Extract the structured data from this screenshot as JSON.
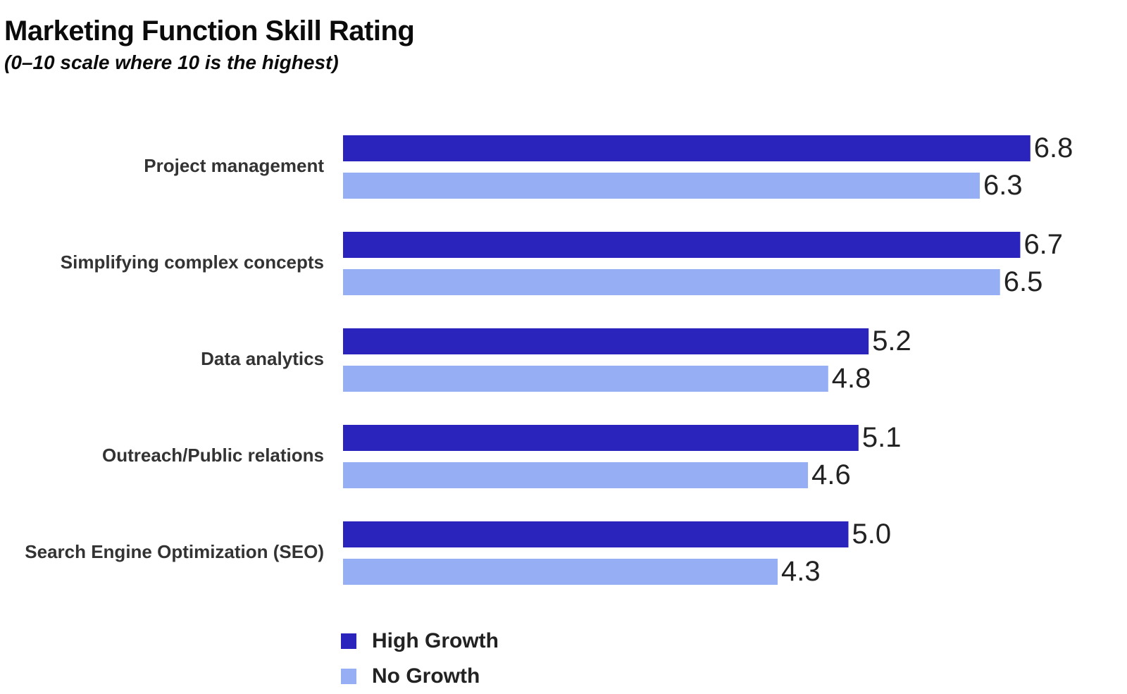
{
  "chart_data": {
    "type": "bar",
    "orientation": "horizontal",
    "title": "Marketing Function Skill Rating",
    "subtitle": "(0–10 scale where 10 is the highest)",
    "xlabel": "",
    "ylabel": "",
    "xlim": [
      0,
      10
    ],
    "grid": false,
    "legend_position": "bottom-left",
    "categories": [
      "Project management",
      "Simplifying complex concepts",
      "Data analytics",
      "Outreach/Public relations",
      "Search Engine Optimization (SEO)"
    ],
    "series": [
      {
        "name": "High Growth",
        "color": "#2a24bd",
        "values": [
          6.8,
          6.7,
          5.2,
          5.1,
          5.0
        ],
        "labels": [
          "6.8",
          "6.7",
          "5.2",
          "5.1",
          "5.0"
        ]
      },
      {
        "name": "No Growth",
        "color": "#96aef4",
        "values": [
          6.3,
          6.5,
          4.8,
          4.6,
          4.3
        ],
        "labels": [
          "6.3",
          "6.5",
          "4.8",
          "4.6",
          "4.3"
        ]
      }
    ]
  }
}
